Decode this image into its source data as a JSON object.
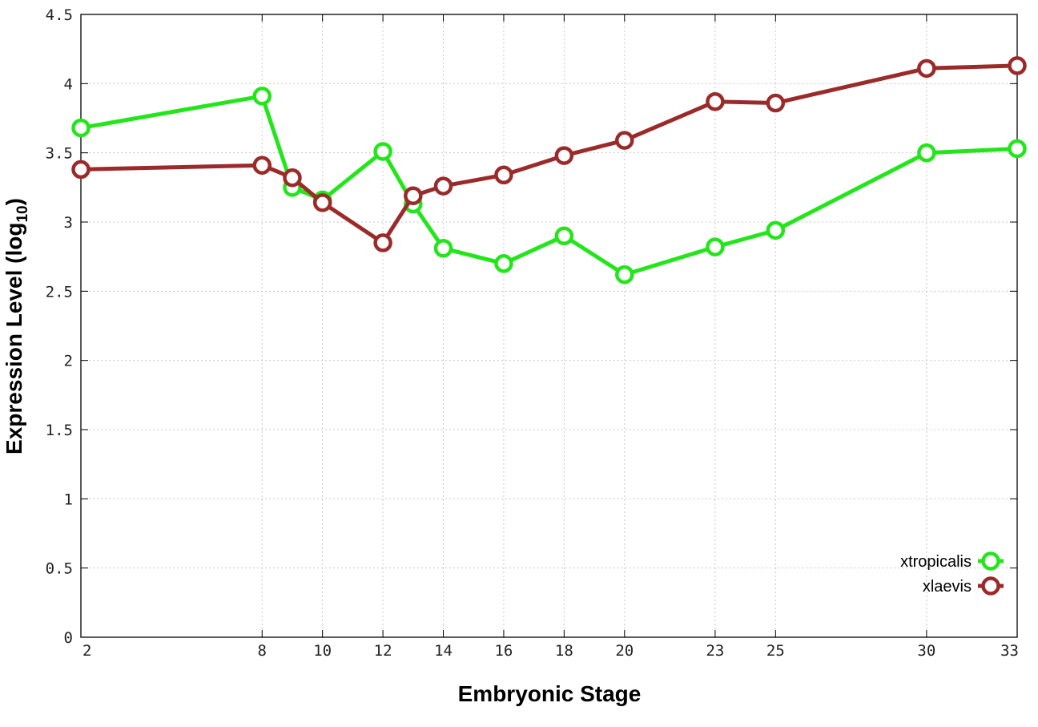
{
  "chart_data": {
    "type": "line",
    "xlabel": "Embryonic Stage",
    "ylabel_main": "Expression Level (log",
    "ylabel_sub": "10",
    "ylabel_close": ")",
    "x_ticks": [
      2,
      8,
      10,
      12,
      14,
      16,
      18,
      20,
      23,
      25,
      30,
      33
    ],
    "x_tick_labels": [
      "2",
      "8",
      "10",
      "12",
      "14",
      "16",
      "18",
      "20",
      "23",
      "25",
      "30",
      "33"
    ],
    "y_ticks": [
      0,
      0.5,
      1,
      1.5,
      2,
      2.5,
      3,
      3.5,
      4,
      4.5
    ],
    "y_tick_labels": [
      "0",
      "0.5",
      "1",
      "1.5",
      "2",
      "2.5",
      "3",
      "3.5",
      "4",
      "4.5"
    ],
    "xlim": [
      2,
      33
    ],
    "ylim": [
      0,
      4.5
    ],
    "grid": true,
    "legend_position": "bottom-right",
    "x": [
      2,
      8,
      9,
      10,
      12,
      13,
      14,
      16,
      18,
      20,
      23,
      25,
      30,
      33
    ],
    "series": [
      {
        "name": "xtropicalis",
        "color": "#22e61a",
        "values": [
          3.68,
          3.91,
          3.25,
          3.16,
          3.51,
          3.13,
          2.81,
          2.7,
          2.9,
          2.62,
          2.82,
          2.94,
          3.5,
          3.53
        ]
      },
      {
        "name": "xlaevis",
        "color": "#9b2a2a",
        "values": [
          3.38,
          3.41,
          3.32,
          3.14,
          2.85,
          3.19,
          3.26,
          3.34,
          3.48,
          3.59,
          3.87,
          3.86,
          4.11,
          4.13
        ]
      }
    ]
  }
}
